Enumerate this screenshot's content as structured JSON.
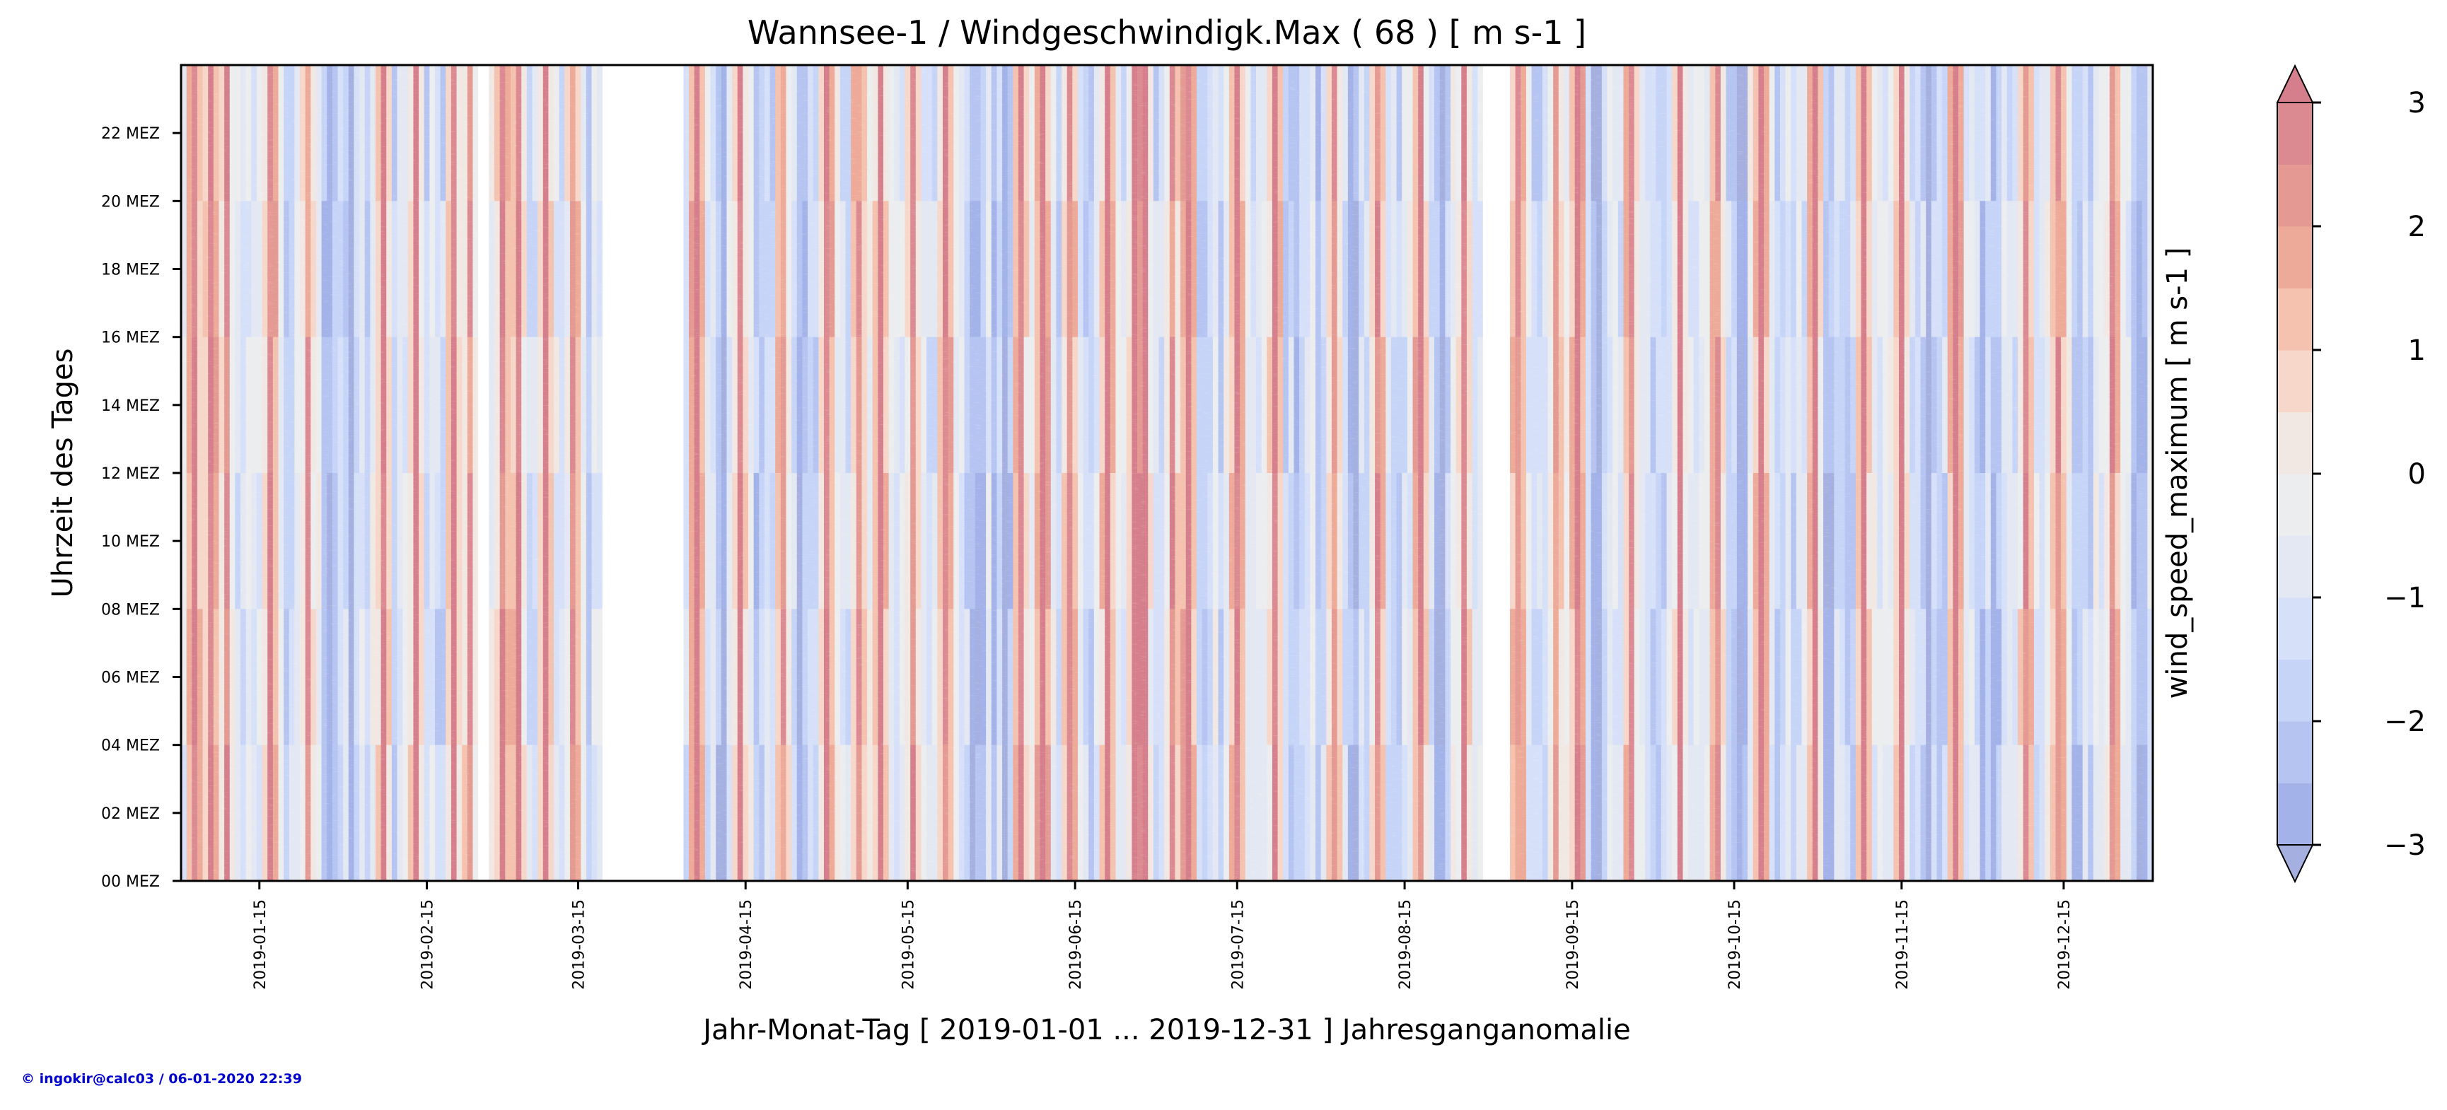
{
  "chart_data": {
    "type": "heatmap",
    "title": "Wannsee-1 / Windgeschwindigk.Max ( 68 ) [ m s-1 ]",
    "xlabel": "Jahr-Monat-Tag [ 2019-01-01 ... 2019-12-31 ] Jahresganganomalie",
    "ylabel": "Uhrzeit des Tages",
    "colorbar_label": "wind_speed_maximum [ m s-1 ]",
    "x_range": [
      "2019-01-01",
      "2019-12-31"
    ],
    "y_range_hours": [
      0,
      24
    ],
    "x_ticks": [
      "2019-01-15",
      "2019-02-15",
      "2019-03-15",
      "2019-04-15",
      "2019-05-15",
      "2019-06-15",
      "2019-07-15",
      "2019-08-15",
      "2019-09-15",
      "2019-10-15",
      "2019-11-15",
      "2019-12-15"
    ],
    "y_ticks": [
      {
        "hour": 0,
        "label": "00 MEZ"
      },
      {
        "hour": 2,
        "label": "02 MEZ"
      },
      {
        "hour": 4,
        "label": "04 MEZ"
      },
      {
        "hour": 6,
        "label": "06 MEZ"
      },
      {
        "hour": 8,
        "label": "08 MEZ"
      },
      {
        "hour": 10,
        "label": "10 MEZ"
      },
      {
        "hour": 12,
        "label": "12 MEZ"
      },
      {
        "hour": 14,
        "label": "14 MEZ"
      },
      {
        "hour": 16,
        "label": "16 MEZ"
      },
      {
        "hour": 18,
        "label": "18 MEZ"
      },
      {
        "hour": 20,
        "label": "20 MEZ"
      },
      {
        "hour": 22,
        "label": "22 MEZ"
      }
    ],
    "colorbar": {
      "min": -3,
      "max": 3,
      "extend": "both",
      "ticks": [
        {
          "value": 3,
          "label": "3"
        },
        {
          "value": 2,
          "label": "2"
        },
        {
          "value": 1,
          "label": "1"
        },
        {
          "value": 0,
          "label": "0"
        },
        {
          "value": -1,
          "label": "−1"
        },
        {
          "value": -2,
          "label": "−2"
        },
        {
          "value": -3,
          "label": "−3"
        }
      ],
      "levels": [
        {
          "from": -3.0,
          "to": -2.5,
          "color": "#a3b2e8"
        },
        {
          "from": -2.5,
          "to": -2.0,
          "color": "#b5c4f1"
        },
        {
          "from": -2.0,
          "to": -1.5,
          "color": "#c6d4f7"
        },
        {
          "from": -1.5,
          "to": -1.0,
          "color": "#d6e0f8"
        },
        {
          "from": -1.0,
          "to": -0.5,
          "color": "#e3e8f2"
        },
        {
          "from": -0.5,
          "to": 0.0,
          "color": "#ecedef"
        },
        {
          "from": 0.0,
          "to": 0.5,
          "color": "#f1e8e4"
        },
        {
          "from": 0.5,
          "to": 1.0,
          "color": "#f6d7c9"
        },
        {
          "from": 1.0,
          "to": 1.5,
          "color": "#f4c2ae"
        },
        {
          "from": 1.5,
          "to": 2.0,
          "color": "#eeaa98"
        },
        {
          "from": 2.0,
          "to": 2.5,
          "color": "#e49a92"
        },
        {
          "from": 2.5,
          "to": 3.0,
          "color": "#dc8a92"
        }
      ],
      "over_color": "#d67f8c",
      "under_color": "#a5b0e0"
    },
    "missing_periods": [
      {
        "from": "2019-02-25",
        "to": "2019-02-26"
      },
      {
        "from": "2019-03-20",
        "to": "2019-04-03"
      },
      {
        "from": "2019-08-30",
        "to": "2019-09-03"
      }
    ],
    "strong_positive_days": [
      "2019-01-03",
      "2019-01-06",
      "2019-01-09",
      "2019-01-17",
      "2019-01-24",
      "2019-02-07",
      "2019-02-13",
      "2019-02-20",
      "2019-02-23",
      "2019-03-01",
      "2019-03-04",
      "2019-03-09",
      "2019-03-14",
      "2019-04-06",
      "2019-04-14",
      "2019-04-22",
      "2019-04-30",
      "2019-05-06",
      "2019-05-10",
      "2019-05-16",
      "2019-05-22",
      "2019-06-05",
      "2019-06-09",
      "2019-06-14",
      "2019-06-21",
      "2019-06-26",
      "2019-06-28",
      "2019-07-03",
      "2019-07-06",
      "2019-07-15",
      "2019-07-22",
      "2019-08-02",
      "2019-08-10",
      "2019-08-18",
      "2019-08-26",
      "2019-09-05",
      "2019-09-12",
      "2019-09-16",
      "2019-09-26",
      "2019-10-05",
      "2019-10-12",
      "2019-10-20",
      "2019-10-30",
      "2019-11-08",
      "2019-11-15",
      "2019-11-25",
      "2019-12-08",
      "2019-12-14",
      "2019-12-24"
    ],
    "strong_negative_days": [
      "2019-01-28",
      "2019-02-01",
      "2019-04-10",
      "2019-04-26",
      "2019-05-28",
      "2019-06-02",
      "2019-07-26",
      "2019-08-06",
      "2019-08-22",
      "2019-09-20",
      "2019-10-16",
      "2019-11-01",
      "2019-11-20",
      "2019-12-02",
      "2019-12-18",
      "2019-12-29"
    ]
  },
  "credit": "© ingokir@calc03 / 06-01-2020 22:39"
}
